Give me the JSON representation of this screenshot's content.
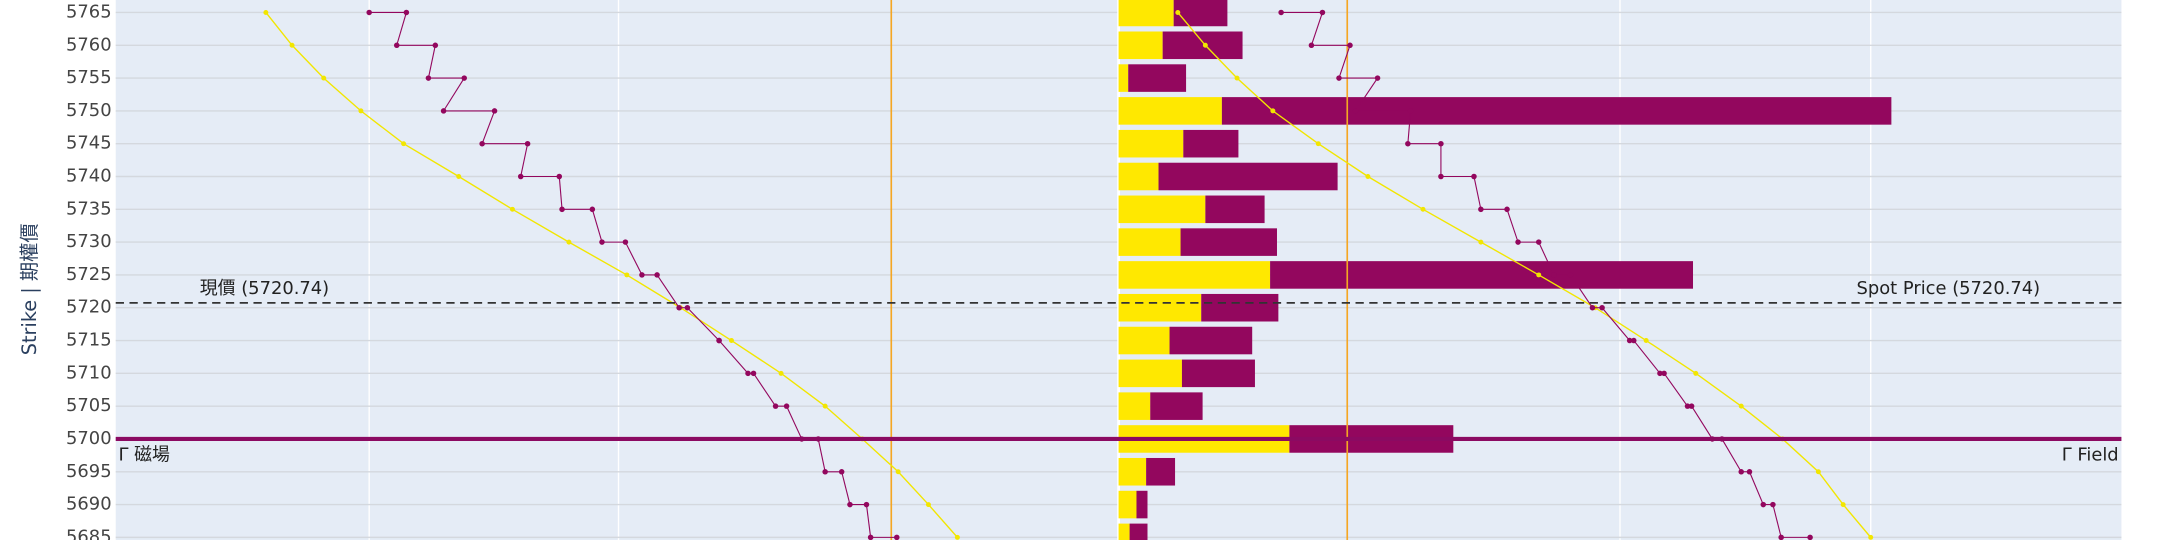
{
  "chart_data": [
    {
      "type": "bar",
      "orientation": "horizontal",
      "stacked": true,
      "categories": [
        5765,
        5760,
        5755,
        5750,
        5745,
        5740,
        5735,
        5730,
        5725,
        5720,
        5715,
        5710,
        5705,
        5700,
        5695,
        5690,
        5685
      ],
      "series": [
        {
          "color": "#ffe800",
          "values": [
            40,
            32,
            7,
            75,
            47,
            29,
            63,
            45,
            110,
            60,
            37,
            46,
            23,
            124,
            20,
            13,
            8
          ]
        },
        {
          "color": "#93075e",
          "values": [
            39,
            58,
            42,
            486,
            40,
            130,
            43,
            70,
            307,
            56,
            60,
            53,
            38,
            119,
            21,
            8,
            13
          ]
        }
      ],
      "xlim": [
        0,
        728
      ],
      "ylim": [
        5684.6,
        5766.9
      ],
      "yticks": [
        5765,
        5760,
        5755,
        5750,
        5745,
        5740,
        5735,
        5730,
        5725,
        5720,
        5715,
        5710,
        5705,
        5700,
        5695,
        5690,
        5685
      ],
      "y_title": "Strike | 期權價",
      "plot_bg": "#e5ecf6",
      "grid": true,
      "reference_lines": [
        {
          "value": 5720.74,
          "style": "dashed",
          "color": "#333333",
          "labels": [
            "現價 (5720.74)",
            "Spot Price (5720.74)"
          ]
        },
        {
          "value": 5700,
          "style": "solid",
          "color": "#8b0a62",
          "labels": [
            "Γ 磁場",
            "Γ Field"
          ]
        }
      ]
    },
    {
      "type": "line",
      "categories": [
        5765,
        5760,
        5755,
        5750,
        5745,
        5740,
        5735,
        5730,
        5725,
        5720,
        5715,
        5710,
        5705,
        5700,
        5695,
        5690,
        5685
      ],
      "xlim": [
        84,
        1540
      ],
      "xgrid": [
        268,
        449,
        1176,
        1358
      ],
      "vlines": [
        647,
        978
      ],
      "vline_color": "#f5a623",
      "series": [
        {
          "color": "#f2e600",
          "values": [
            193,
            212,
            235,
            262,
            293,
            333,
            372,
            413,
            455,
            494,
            531,
            567,
            599,
            626,
            652,
            674,
            695
          ]
        },
        {
          "color": "#93075e",
          "values": [
            268,
            288,
            311,
            322,
            350,
            378,
            408,
            437,
            466,
            493,
            522,
            543,
            563,
            582,
            599,
            617,
            632
          ],
          "values2": [
            295,
            316,
            337,
            359,
            383,
            406,
            430,
            454,
            477,
            499,
            522,
            547,
            571,
            594,
            611,
            629,
            651
          ]
        },
        {
          "color": "#f2e600",
          "values": [
            855,
            875,
            898,
            924,
            957,
            993,
            1033,
            1075,
            1117,
            1158,
            1195,
            1231,
            1264,
            1294,
            1320,
            1338,
            1358
          ]
        },
        {
          "color": "#93075e",
          "values": [
            930,
            952,
            972,
            984,
            1022,
            1046,
            1075,
            1102,
            1128,
            1156,
            1183,
            1205,
            1225,
            1243,
            1264,
            1280,
            1293
          ],
          "values2": [
            960,
            980,
            1000,
            1024,
            1046,
            1070,
            1094,
            1117,
            1140,
            1163,
            1186,
            1208,
            1228,
            1250,
            1270,
            1287,
            1314
          ]
        }
      ]
    }
  ]
}
